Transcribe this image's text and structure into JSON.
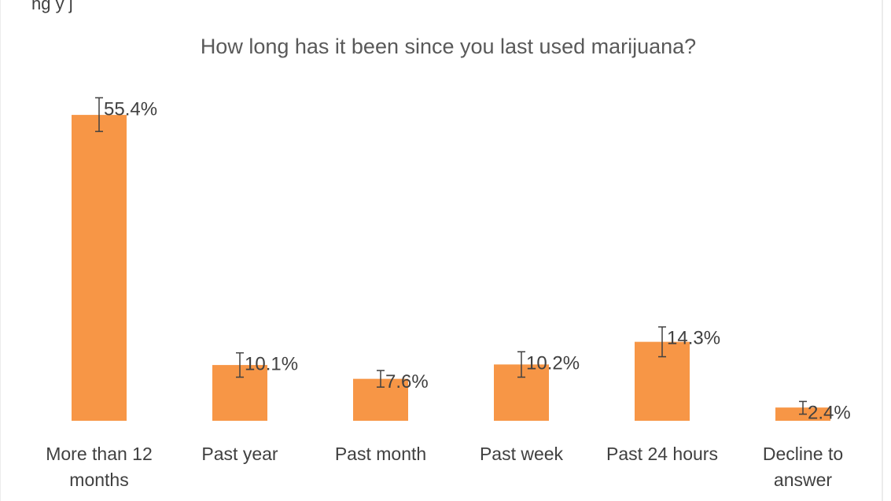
{
  "top_clipped_text": "ng              y           j",
  "chart_data": {
    "type": "bar",
    "title": "How long has it been since you last used marijuana?",
    "xlabel": "",
    "ylabel": "",
    "ylim": [
      0,
      60
    ],
    "grid": false,
    "legend": "none",
    "categories": [
      "More than 12 months",
      "Past year",
      "Past month",
      "Past week",
      "Past 24 hours",
      "Decline to answer"
    ],
    "category_lines": [
      [
        "More than 12",
        "months"
      ],
      [
        "Past year"
      ],
      [
        "Past month"
      ],
      [
        "Past week"
      ],
      [
        "Past 24 hours"
      ],
      [
        "Decline to",
        "answer"
      ]
    ],
    "series": [
      {
        "values": [
          55.4,
          10.1,
          7.6,
          10.2,
          14.3,
          2.4
        ],
        "error_low": [
          52.4,
          7.9,
          6.1,
          7.9,
          11.6,
          1.2
        ],
        "error_high": [
          58.5,
          12.3,
          9.1,
          12.5,
          17.0,
          3.5
        ]
      }
    ],
    "data_labels": [
      "55.4%",
      "10.1%",
      "7.6%",
      "10.2%",
      "14.3%",
      "2.4%"
    ],
    "bar_color": "#F79646",
    "error_bar_color": "#404040"
  }
}
